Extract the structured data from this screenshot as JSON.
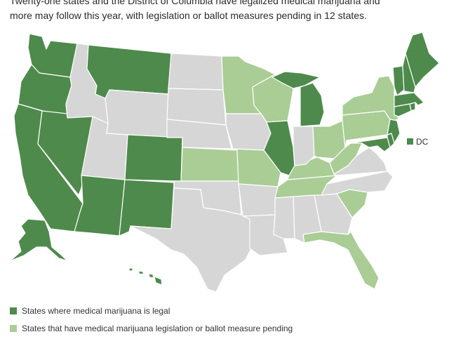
{
  "intro": {
    "line1": "Twenty-one states and the District of Columbia have legalized medical marijuana and",
    "line2": "more may follow this year, with legislation or ballot measures pending in 12 states."
  },
  "colors": {
    "legal": "#4e8a4c",
    "pending": "#a9cd95",
    "none": "#d6d6d6",
    "border": "#ffffff"
  },
  "dc_label": "DC",
  "legend": [
    {
      "status": "legal",
      "label": "States where medical marijuana is legal"
    },
    {
      "status": "pending",
      "label": "States that have medical marijuana legislation or ballot measure pending"
    }
  ],
  "states": {
    "WA": "legal",
    "OR": "legal",
    "CA": "legal",
    "NV": "legal",
    "AZ": "legal",
    "NM": "legal",
    "CO": "legal",
    "MT": "legal",
    "AK": "legal",
    "HI": "legal",
    "IL": "legal",
    "MI": "legal",
    "ME": "legal",
    "VT": "legal",
    "NH": "legal",
    "MA": "legal",
    "RI": "legal",
    "CT": "legal",
    "NJ": "legal",
    "DE": "legal",
    "MD": "legal",
    "DC": "legal",
    "MN": "pending",
    "WI": "pending",
    "KS": "pending",
    "MO": "pending",
    "OH": "pending",
    "KY": "pending",
    "WV": "pending",
    "TN": "pending",
    "SC": "pending",
    "FL": "pending",
    "NY": "pending",
    "PA": "pending",
    "ID": "none",
    "UT": "none",
    "WY": "none",
    "ND": "none",
    "SD": "none",
    "NE": "none",
    "IA": "none",
    "TX": "none",
    "OK": "none",
    "AR": "none",
    "LA": "none",
    "MS": "none",
    "AL": "none",
    "GA": "none",
    "NC": "none",
    "VA": "none",
    "IN": "none"
  }
}
